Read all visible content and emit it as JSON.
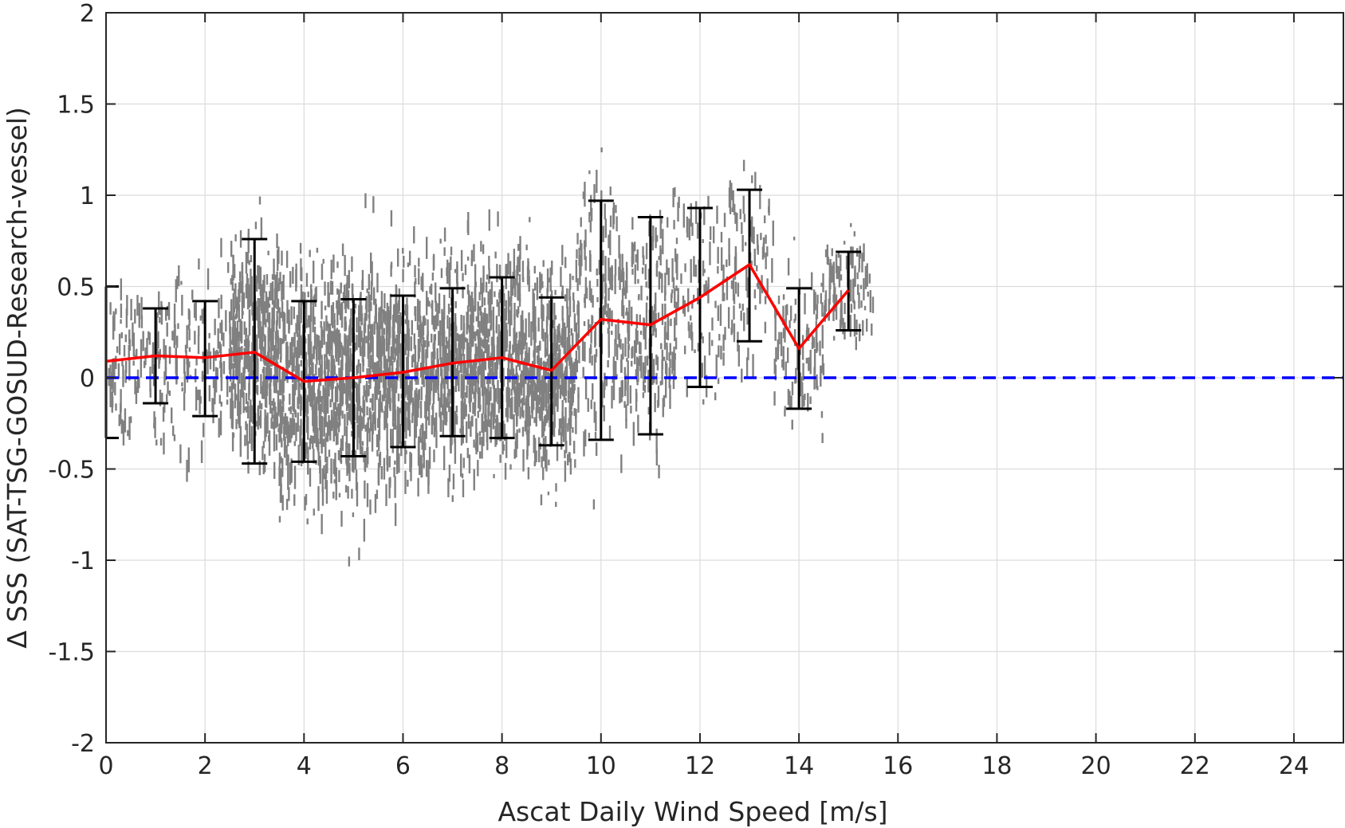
{
  "chart_data": {
    "type": "scatter",
    "title": "",
    "xlabel": "Ascat Daily Wind Speed [m/s]",
    "ylabel": "Δ SSS (SAT-TSG-GOSUD-Research-vessel)",
    "xlim": [
      0,
      25
    ],
    "ylim": [
      -2,
      2
    ],
    "x_ticks": [
      0,
      2,
      4,
      6,
      8,
      10,
      12,
      14,
      16,
      18,
      20,
      22,
      24
    ],
    "x_tick_labels": [
      "0",
      "2",
      "4",
      "6",
      "8",
      "10",
      "12",
      "14",
      "16",
      "18",
      "20",
      "22",
      "24"
    ],
    "y_ticks": [
      2,
      1.5,
      1,
      0.5,
      0,
      -0.5,
      -1,
      -1.5,
      -2
    ],
    "y_tick_labels": [
      "2",
      "1.5",
      "1",
      "0.5",
      "0",
      "-0.5",
      "-1",
      "-1.5",
      "-2"
    ],
    "grid": true,
    "colors": {
      "scatter": "#808080",
      "mean_line": "#ff0000",
      "error_bars": "#000000",
      "zero_line": "#0000ff",
      "grid": "#dcdcdc",
      "axes": "#262626"
    },
    "scatter_spread": [
      {
        "x": 0,
        "center": 0.09,
        "sd": 0.3
      },
      {
        "x": 1,
        "center": 0.12,
        "sd": 0.3
      },
      {
        "x": 2,
        "center": 0.11,
        "sd": 0.35
      },
      {
        "x": 3,
        "center": 0.14,
        "sd": 0.4
      },
      {
        "x": 4,
        "center": -0.02,
        "sd": 0.45
      },
      {
        "x": 5,
        "center": 0.0,
        "sd": 0.45
      },
      {
        "x": 6,
        "center": 0.03,
        "sd": 0.42
      },
      {
        "x": 7,
        "center": 0.08,
        "sd": 0.4
      },
      {
        "x": 8,
        "center": 0.11,
        "sd": 0.4
      },
      {
        "x": 9,
        "center": 0.04,
        "sd": 0.4
      },
      {
        "x": 10,
        "center": 0.32,
        "sd": 0.5
      },
      {
        "x": 11,
        "center": 0.29,
        "sd": 0.45
      },
      {
        "x": 12,
        "center": 0.44,
        "sd": 0.4
      },
      {
        "x": 13,
        "center": 0.62,
        "sd": 0.35
      },
      {
        "x": 14,
        "center": 0.16,
        "sd": 0.3
      },
      {
        "x": 15,
        "center": 0.48,
        "sd": 0.2
      }
    ],
    "mean_line": {
      "x": [
        0,
        1,
        2,
        3,
        4,
        5,
        6,
        7,
        8,
        9,
        10,
        11,
        12,
        13,
        14,
        15
      ],
      "y": [
        0.09,
        0.12,
        0.11,
        0.14,
        -0.02,
        0.0,
        0.03,
        0.08,
        0.11,
        0.04,
        0.32,
        0.29,
        0.44,
        0.62,
        0.16,
        0.48
      ]
    },
    "error_bars": [
      {
        "x": 0,
        "low": -0.33,
        "high": 0.5
      },
      {
        "x": 1,
        "low": -0.14,
        "high": 0.38
      },
      {
        "x": 2,
        "low": -0.21,
        "high": 0.42
      },
      {
        "x": 3,
        "low": -0.47,
        "high": 0.76
      },
      {
        "x": 4,
        "low": -0.46,
        "high": 0.42
      },
      {
        "x": 5,
        "low": -0.43,
        "high": 0.43
      },
      {
        "x": 6,
        "low": -0.38,
        "high": 0.45
      },
      {
        "x": 7,
        "low": -0.32,
        "high": 0.49
      },
      {
        "x": 8,
        "low": -0.33,
        "high": 0.55
      },
      {
        "x": 9,
        "low": -0.37,
        "high": 0.44
      },
      {
        "x": 10,
        "low": -0.34,
        "high": 0.97
      },
      {
        "x": 11,
        "low": -0.31,
        "high": 0.88
      },
      {
        "x": 12,
        "low": -0.05,
        "high": 0.93
      },
      {
        "x": 13,
        "low": 0.2,
        "high": 1.03
      },
      {
        "x": 14,
        "low": -0.17,
        "high": 0.49
      },
      {
        "x": 15,
        "low": 0.26,
        "high": 0.69
      }
    ],
    "reference_line": {
      "y": 0
    }
  }
}
